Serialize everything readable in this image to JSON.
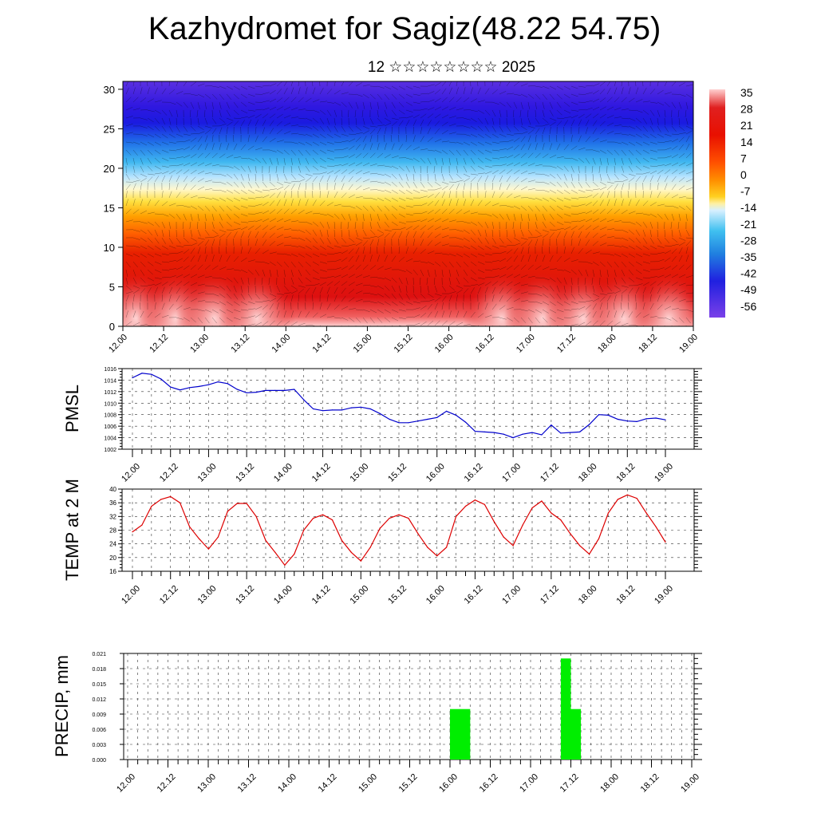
{
  "title": "Kazhydromet for Sagiz(48.22 54.75)",
  "subtitle": "12 ☆☆☆☆☆☆☆☆ 2025",
  "x_ticks": [
    "12.00",
    "12.12",
    "13.00",
    "13.12",
    "14.00",
    "14.12",
    "15.00",
    "15.12",
    "16.00",
    "16.12",
    "17.00",
    "17.12",
    "18.00",
    "18.12",
    "19.00"
  ],
  "colors": {
    "pmsl_line": "#0000cc",
    "temp_line": "#dd0000",
    "precip_bar": "#00ee00"
  },
  "chart_data": [
    {
      "type": "heatmap",
      "name": "cross-section",
      "xlabel": "",
      "ylabel": "",
      "ylim": [
        0,
        31
      ],
      "y_ticks": [
        "0",
        "5",
        "10",
        "15",
        "20",
        "25",
        "30"
      ],
      "colorbar_labels": [
        "35",
        "28",
        "21",
        "14",
        "7",
        "0",
        "-7",
        "-14",
        "-21",
        "-28",
        "-35",
        "-42",
        "-49",
        "-56"
      ],
      "colorbar_range": [
        -60,
        38
      ],
      "overlay": "wind barbs"
    },
    {
      "type": "line",
      "name": "pmsl",
      "ylabel": "PMSL",
      "ylim": [
        1002,
        1016
      ],
      "y_ticks": [
        "1002",
        "1004",
        "1006",
        "1008",
        "1010",
        "1012",
        "1014",
        "1016"
      ],
      "x": [
        0,
        3,
        6,
        9,
        12,
        15,
        18,
        21,
        24,
        27,
        30,
        33,
        36,
        39,
        42,
        45,
        48,
        51,
        54,
        57,
        60,
        63,
        66,
        69,
        72,
        75,
        78,
        81,
        84,
        87,
        90,
        93,
        96,
        99,
        102,
        105,
        108,
        111,
        114,
        117,
        120,
        123,
        126,
        129,
        132,
        135,
        138,
        141,
        144,
        147,
        150,
        153,
        156,
        159,
        162,
        165,
        168
      ],
      "values": [
        1014.4,
        1015.2,
        1015.0,
        1014.2,
        1012.8,
        1012.3,
        1012.7,
        1012.9,
        1013.2,
        1013.7,
        1013.4,
        1012.4,
        1011.8,
        1011.9,
        1012.2,
        1012.2,
        1012.2,
        1012.4,
        1010.6,
        1009.0,
        1008.7,
        1008.8,
        1008.8,
        1009.2,
        1009.3,
        1009.0,
        1008.2,
        1007.2,
        1006.6,
        1006.6,
        1006.9,
        1007.2,
        1007.5,
        1008.6,
        1007.9,
        1006.7,
        1005.1,
        1005.0,
        1004.9,
        1004.6,
        1004.0,
        1004.6,
        1004.9,
        1004.5,
        1006.2,
        1004.8,
        1004.9,
        1005.0,
        1006.3,
        1008.0,
        1007.9,
        1007.2,
        1006.9,
        1006.8,
        1007.3,
        1007.4,
        1007.1
      ]
    },
    {
      "type": "line",
      "name": "temp",
      "ylabel": "TEMP at 2 M",
      "ylim": [
        16,
        40
      ],
      "y_ticks": [
        "16",
        "20",
        "24",
        "28",
        "32",
        "36",
        "40"
      ],
      "x": [
        0,
        3,
        6,
        9,
        12,
        15,
        18,
        21,
        24,
        27,
        30,
        33,
        36,
        39,
        42,
        45,
        48,
        51,
        54,
        57,
        60,
        63,
        66,
        69,
        72,
        75,
        78,
        81,
        84,
        87,
        90,
        93,
        96,
        99,
        102,
        105,
        108,
        111,
        114,
        117,
        120,
        123,
        126,
        129,
        132,
        135,
        138,
        141,
        144,
        147,
        150,
        153,
        156,
        159,
        162,
        165,
        168
      ],
      "values": [
        27.5,
        29.5,
        35.0,
        37.0,
        37.8,
        36.0,
        29.0,
        25.5,
        22.5,
        26.0,
        33.5,
        35.8,
        35.8,
        32.0,
        25.0,
        21.5,
        17.8,
        21.0,
        28.0,
        31.5,
        32.5,
        31.0,
        25.0,
        21.5,
        19.0,
        23.0,
        28.5,
        31.5,
        32.5,
        31.5,
        27.0,
        23.0,
        20.5,
        23.0,
        32.0,
        35.0,
        36.8,
        35.5,
        30.5,
        26.0,
        23.5,
        29.5,
        34.5,
        36.5,
        33.0,
        31.0,
        27.0,
        23.5,
        21.0,
        25.5,
        33.0,
        37.0,
        38.3,
        37.3,
        33.0,
        29.0,
        24.5
      ]
    },
    {
      "type": "bar",
      "name": "precip",
      "ylabel": "PRECIP, mm",
      "ylim": [
        0,
        0.021
      ],
      "y_ticks": [
        "0.000",
        "0.003",
        "0.006",
        "0.009",
        "0.012",
        "0.015",
        "0.018",
        "0.021"
      ],
      "bars": [
        {
          "x_start": 96,
          "x_end": 102,
          "value": 0.01
        },
        {
          "x_start": 129,
          "x_end": 132,
          "value": 0.02
        },
        {
          "x_start": 132,
          "x_end": 135,
          "value": 0.01
        }
      ]
    }
  ]
}
